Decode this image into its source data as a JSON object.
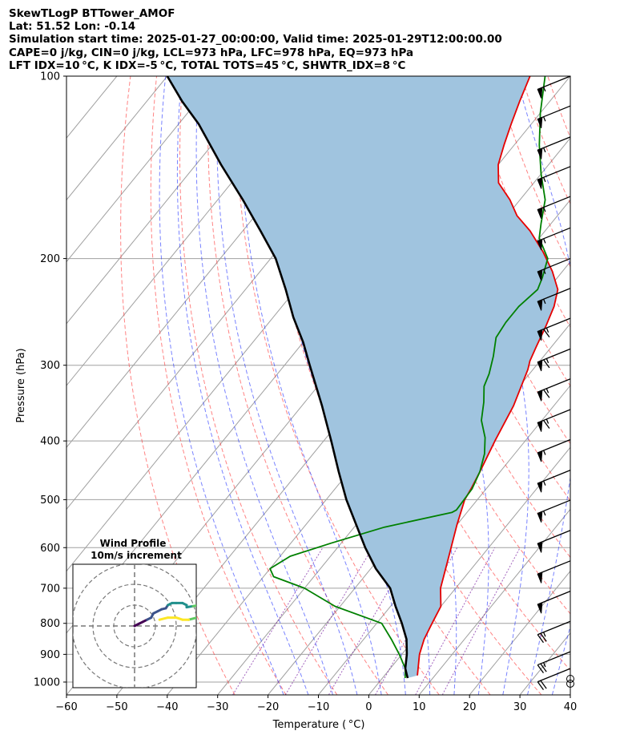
{
  "header": {
    "line1": "SkewTLogP BTTower_AMOF",
    "line2": "Lat: 51.52   Lon: -0.14",
    "line3": "Simulation start time: 2025-01-27_00:00:00, Valid time: 2025-01-29T12:00:00.00",
    "line4": "CAPE=0 j/kg, CIN=0 j/kg, LCL=973 hPa, LFC=978 hPa, EQ=973 hPa",
    "line5": "LFT IDX=10 °C, K IDX=-5 °C, TOTAL TOTS=45 °C, SHWTR_IDX=8 °C"
  },
  "chart_data": {
    "type": "line",
    "title": "SkewTLogP BTTower_AMOF",
    "xlabel": "Temperature ( °C)",
    "ylabel": "Pressure (hPa)",
    "xlim": [
      -60,
      40
    ],
    "ylim": [
      1050,
      100
    ],
    "x_ticks": [
      "−60",
      "−50",
      "−40",
      "−30",
      "−20",
      "−10",
      "0",
      "10",
      "20",
      "30",
      "40"
    ],
    "y_ticks": [
      "100",
      "200",
      "300",
      "400",
      "500",
      "600",
      "700",
      "800",
      "900",
      "1000"
    ],
    "colors": {
      "temperature": "#e60000",
      "dewpoint": "#008000",
      "parcel": "#000000",
      "cape_fill": "#a0c4df",
      "dry_adiabat": "#ff3030",
      "moist_adiabat": "#2030ff",
      "mixing_ratio": "#7b1fa2",
      "isotherm": "#a0a0a0",
      "hodo_ring": "#777777"
    },
    "series": [
      {
        "name": "Temperature",
        "points": [
          [
            6.5,
            975
          ],
          [
            3.5,
            900
          ],
          [
            2.0,
            850
          ],
          [
            1.0,
            800
          ],
          [
            0.0,
            750
          ],
          [
            -3.0,
            700
          ],
          [
            -6.5,
            620
          ],
          [
            -10.0,
            550
          ],
          [
            -12.5,
            500
          ],
          [
            -13.0,
            480
          ],
          [
            -14.0,
            450
          ],
          [
            -16.0,
            400
          ],
          [
            -18.0,
            350
          ],
          [
            -21.0,
            305
          ],
          [
            -21.5,
            300
          ],
          [
            -22.0,
            295
          ],
          [
            -23.0,
            280
          ],
          [
            -24.5,
            258
          ],
          [
            -26.0,
            240
          ],
          [
            -28.0,
            225
          ],
          [
            -32.0,
            210
          ],
          [
            -37.0,
            195
          ],
          [
            -43.0,
            180
          ],
          [
            -48.0,
            170
          ],
          [
            -52.0,
            160
          ],
          [
            -57.0,
            150
          ],
          [
            -60.0,
            140
          ],
          [
            -62.0,
            130
          ],
          [
            -64.0,
            120
          ],
          [
            -66.0,
            110
          ],
          [
            -68.0,
            100
          ]
        ]
      },
      {
        "name": "Dewpoint",
        "points": [
          [
            4.5,
            985
          ],
          [
            3.0,
            950
          ],
          [
            -0.5,
            900
          ],
          [
            -4.5,
            850
          ],
          [
            -9.0,
            800
          ],
          [
            -21.0,
            750
          ],
          [
            -30.0,
            700
          ],
          [
            -38.0,
            670
          ],
          [
            -40.0,
            650
          ],
          [
            -38.0,
            620
          ],
          [
            -32.0,
            590
          ],
          [
            -24.0,
            555
          ],
          [
            -13.0,
            525
          ],
          [
            -12.5,
            520
          ],
          [
            -12.8,
            480
          ],
          [
            -14.0,
            450
          ],
          [
            -16.0,
            420
          ],
          [
            -18.5,
            395
          ],
          [
            -22.0,
            370
          ],
          [
            -24.5,
            345
          ],
          [
            -27.0,
            325
          ],
          [
            -28.0,
            310
          ],
          [
            -30.0,
            290
          ],
          [
            -32.5,
            270
          ],
          [
            -33.0,
            255
          ],
          [
            -33.0,
            240
          ],
          [
            -32.0,
            225
          ],
          [
            -33.0,
            215
          ],
          [
            -35.0,
            200
          ],
          [
            -40.0,
            185
          ],
          [
            -42.0,
            175
          ],
          [
            -45.0,
            160
          ],
          [
            -50.0,
            145
          ],
          [
            -55.0,
            130
          ],
          [
            -60.0,
            115
          ],
          [
            -65.0,
            100
          ]
        ]
      },
      {
        "name": "Parcel",
        "points": [
          [
            5.0,
            985
          ],
          [
            3.0,
            950
          ],
          [
            1.0,
            900
          ],
          [
            -1.5,
            850
          ],
          [
            -5.0,
            800
          ],
          [
            -9.0,
            750
          ],
          [
            -13.0,
            700
          ],
          [
            -19.0,
            650
          ],
          [
            -24.5,
            600
          ],
          [
            -30.0,
            550
          ],
          [
            -36.0,
            500
          ],
          [
            -42.0,
            450
          ],
          [
            -48.5,
            400
          ],
          [
            -56.0,
            350
          ],
          [
            -65.0,
            300
          ],
          [
            -70.0,
            275
          ],
          [
            -76.0,
            250
          ],
          [
            -82.0,
            225
          ],
          [
            -89.0,
            200
          ],
          [
            -96.5,
            180
          ],
          [
            -105.0,
            160
          ],
          [
            -115.0,
            140
          ],
          [
            -126.0,
            120
          ],
          [
            -133.0,
            110
          ],
          [
            -140.0,
            100
          ]
        ]
      }
    ],
    "winds": [
      {
        "p": 100,
        "kt": 55
      },
      {
        "p": 112,
        "kt": 55
      },
      {
        "p": 126,
        "kt": 55
      },
      {
        "p": 141,
        "kt": 55
      },
      {
        "p": 158,
        "kt": 55
      },
      {
        "p": 178,
        "kt": 55
      },
      {
        "p": 200,
        "kt": 55
      },
      {
        "p": 224,
        "kt": 55
      },
      {
        "p": 251,
        "kt": 65
      },
      {
        "p": 282,
        "kt": 65
      },
      {
        "p": 316,
        "kt": 65
      },
      {
        "p": 355,
        "kt": 65
      },
      {
        "p": 398,
        "kt": 55
      },
      {
        "p": 447,
        "kt": 55
      },
      {
        "p": 501,
        "kt": 55
      },
      {
        "p": 562,
        "kt": 50
      },
      {
        "p": 631,
        "kt": 50
      },
      {
        "p": 708,
        "kt": 50
      },
      {
        "p": 794,
        "kt": 25
      },
      {
        "p": 891,
        "kt": 25
      },
      {
        "p": 950,
        "kt": 20
      },
      {
        "p": 1000,
        "kt": 0
      }
    ],
    "hodograph": {
      "title": "Wind Profile",
      "subtitle": "10m/s increment",
      "rings_ms": [
        10,
        20,
        30
      ],
      "points": [
        [
          0,
          0
        ],
        [
          2,
          1
        ],
        [
          4,
          2
        ],
        [
          6,
          3
        ],
        [
          8,
          4
        ],
        [
          9,
          6
        ],
        [
          11,
          7
        ],
        [
          13,
          8
        ],
        [
          15,
          8.5
        ],
        [
          16,
          10
        ],
        [
          18,
          11
        ],
        [
          20,
          11
        ],
        [
          23,
          11
        ],
        [
          25,
          10
        ],
        [
          25,
          9
        ],
        [
          28,
          9.5
        ],
        [
          31,
          10
        ],
        [
          31,
          9
        ],
        [
          31,
          8
        ],
        [
          31,
          6
        ],
        [
          30,
          4
        ],
        [
          26,
          3
        ],
        [
          23,
          3
        ],
        [
          20,
          4
        ],
        [
          16,
          4
        ],
        [
          12,
          3
        ]
      ]
    }
  }
}
